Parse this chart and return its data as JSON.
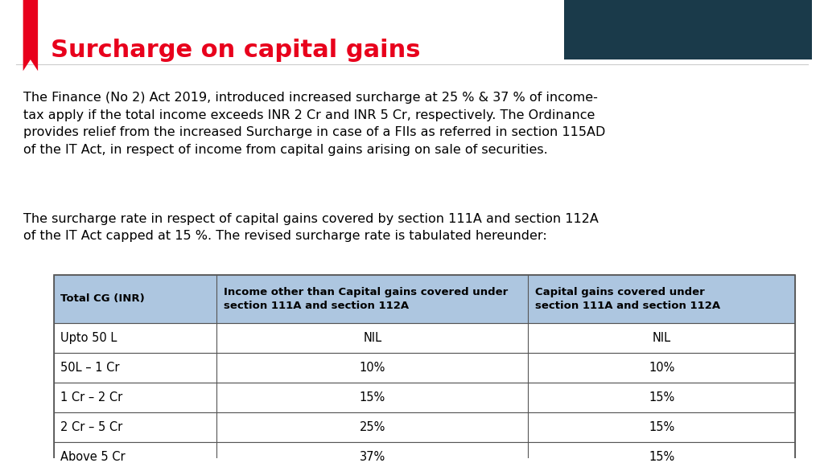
{
  "title": "Surcharge on capital gains",
  "title_color": "#e8001c",
  "bg_color": "#ffffff",
  "logo_bg": "#1a3a4a",
  "paragraph1": "The Finance (No 2) Act 2019, introduced increased surcharge at 25 % & 37 % of income-\ntax apply if the total income exceeds INR 2 Cr and INR 5 Cr, respectively. The Ordinance\nprovides relief from the increased Surcharge in case of a FIIs as referred in section 115AD\nof the IT Act, in respect of income from capital gains arising on sale of securities.",
  "paragraph2": "The surcharge rate in respect of capital gains covered by section 111A and section 112A\nof the IT Act capped at 15 %. The revised surcharge rate is tabulated hereunder:",
  "table_header_bg": "#adc6e0",
  "table_header_color": "#000000",
  "table_col1_header": "Total CG (INR)",
  "table_col2_header": "Income other than Capital gains covered under\nsection 111A and section 112A",
  "table_col3_header": "Capital gains covered under\nsection 111A and section 112A",
  "table_rows": [
    [
      "Upto 50 L",
      "NIL",
      "NIL"
    ],
    [
      "50L – 1 Cr",
      "10%",
      "10%"
    ],
    [
      "1 Cr – 2 Cr",
      "15%",
      "15%"
    ],
    [
      "2 Cr – 5 Cr",
      "25%",
      "15%"
    ],
    [
      "Above 5 Cr",
      "37%",
      "15%"
    ]
  ],
  "table_border_color": "#555555",
  "ribbon_color": "#e8001c"
}
